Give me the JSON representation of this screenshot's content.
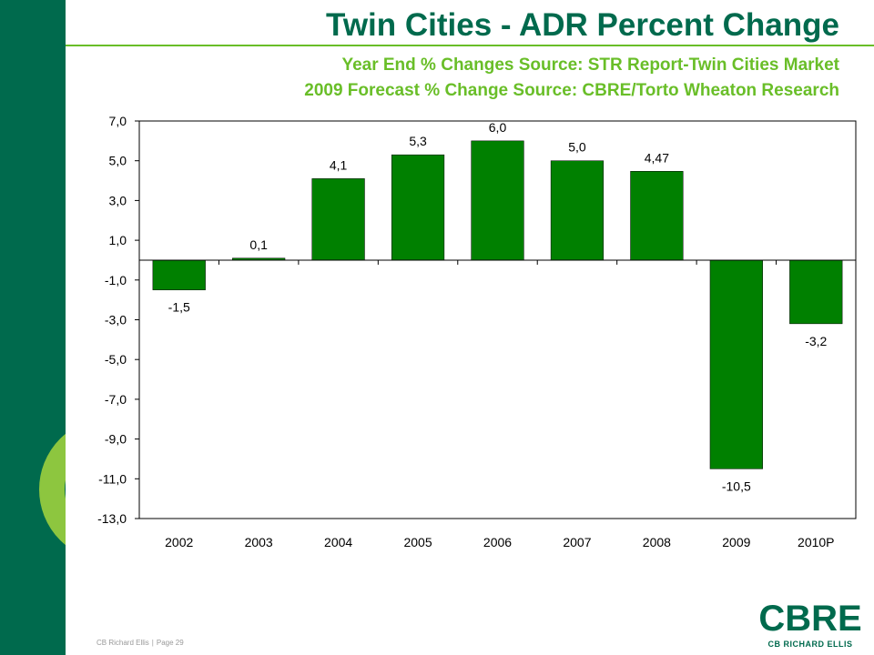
{
  "slide": {
    "title": "Twin Cities -  ADR Percent Change",
    "subtitle_line1": "Year End % Changes Source: STR Report-Twin Cities Market",
    "subtitle_line2": "2009 Forecast % Change Source: CBRE/Torto Wheaton Research"
  },
  "footer": {
    "company": "CB Richard Ellis",
    "page": "Page 29"
  },
  "logo": {
    "mark": "CBRE",
    "name": "CB RICHARD ELLIS"
  },
  "colors": {
    "brand_green": "#006a4d",
    "accent_green": "#69be28",
    "bar_green": "#008000"
  },
  "chart_data": {
    "type": "bar",
    "categories": [
      "2002",
      "2003",
      "2004",
      "2005",
      "2006",
      "2007",
      "2008",
      "2009",
      "2010P"
    ],
    "values": [
      -1.5,
      0.1,
      4.1,
      5.3,
      6.0,
      5.0,
      4.47,
      -10.5,
      -3.2
    ],
    "data_labels": [
      "-1,5",
      "0,1",
      "4,1",
      "5,3",
      "6,0",
      "5,0",
      "4,47",
      "-10,5",
      "-3,2"
    ],
    "ylim": [
      -13,
      7
    ],
    "yticks": [
      7,
      5,
      3,
      1,
      -1,
      -3,
      -5,
      -7,
      -9,
      -11,
      -13
    ],
    "ytick_labels": [
      "7,0",
      "5,0",
      "3,0",
      "1,0",
      "-1,0",
      "-3,0",
      "-5,0",
      "-7,0",
      "-9,0",
      "-11,0",
      "-13,0"
    ],
    "xlabel": "",
    "ylabel": "",
    "grid": false,
    "legend": false
  }
}
